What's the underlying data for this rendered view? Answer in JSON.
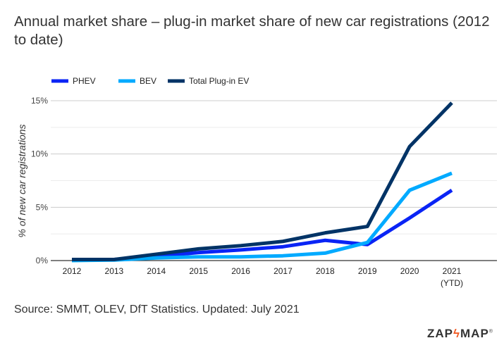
{
  "title": "Annual market share – plug-in market share of new car registrations (2012 to date)",
  "source": "Source: SMMT, OLEV, DfT Statistics. Updated: July 2021",
  "logo": {
    "left": "ZAP",
    "right": "MAP",
    "mark": "®"
  },
  "chart_data": {
    "type": "line",
    "title": "Annual market share – plug-in market share of new car registrations (2012 to date)",
    "xlabel": "",
    "ylabel": "% of new car registrations",
    "categories": [
      "2012",
      "2013",
      "2014",
      "2015",
      "2016",
      "2017",
      "2018",
      "2019",
      "2020",
      "2021"
    ],
    "category_sublabels": [
      "",
      "",
      "",
      "",
      "",
      "",
      "",
      "",
      "",
      "(YTD)"
    ],
    "ylim": [
      0,
      15
    ],
    "yticks": [
      0,
      5,
      10,
      15
    ],
    "ytick_labels": [
      "0%",
      "5%",
      "10%",
      "15%"
    ],
    "grid": true,
    "legend": "top-left",
    "series": [
      {
        "name": "PHEV",
        "color": "#0a24f5",
        "values": [
          0.05,
          0.1,
          0.4,
          0.75,
          1.0,
          1.3,
          1.9,
          1.5,
          4.0,
          6.6
        ]
      },
      {
        "name": "BEV",
        "color": "#00aaff",
        "values": [
          0.0,
          0.05,
          0.25,
          0.35,
          0.35,
          0.45,
          0.7,
          1.7,
          6.6,
          8.2
        ]
      },
      {
        "name": "Total Plug-in EV",
        "color": "#003366",
        "values": [
          0.1,
          0.1,
          0.6,
          1.1,
          1.4,
          1.8,
          2.6,
          3.2,
          10.7,
          14.8
        ]
      }
    ]
  }
}
